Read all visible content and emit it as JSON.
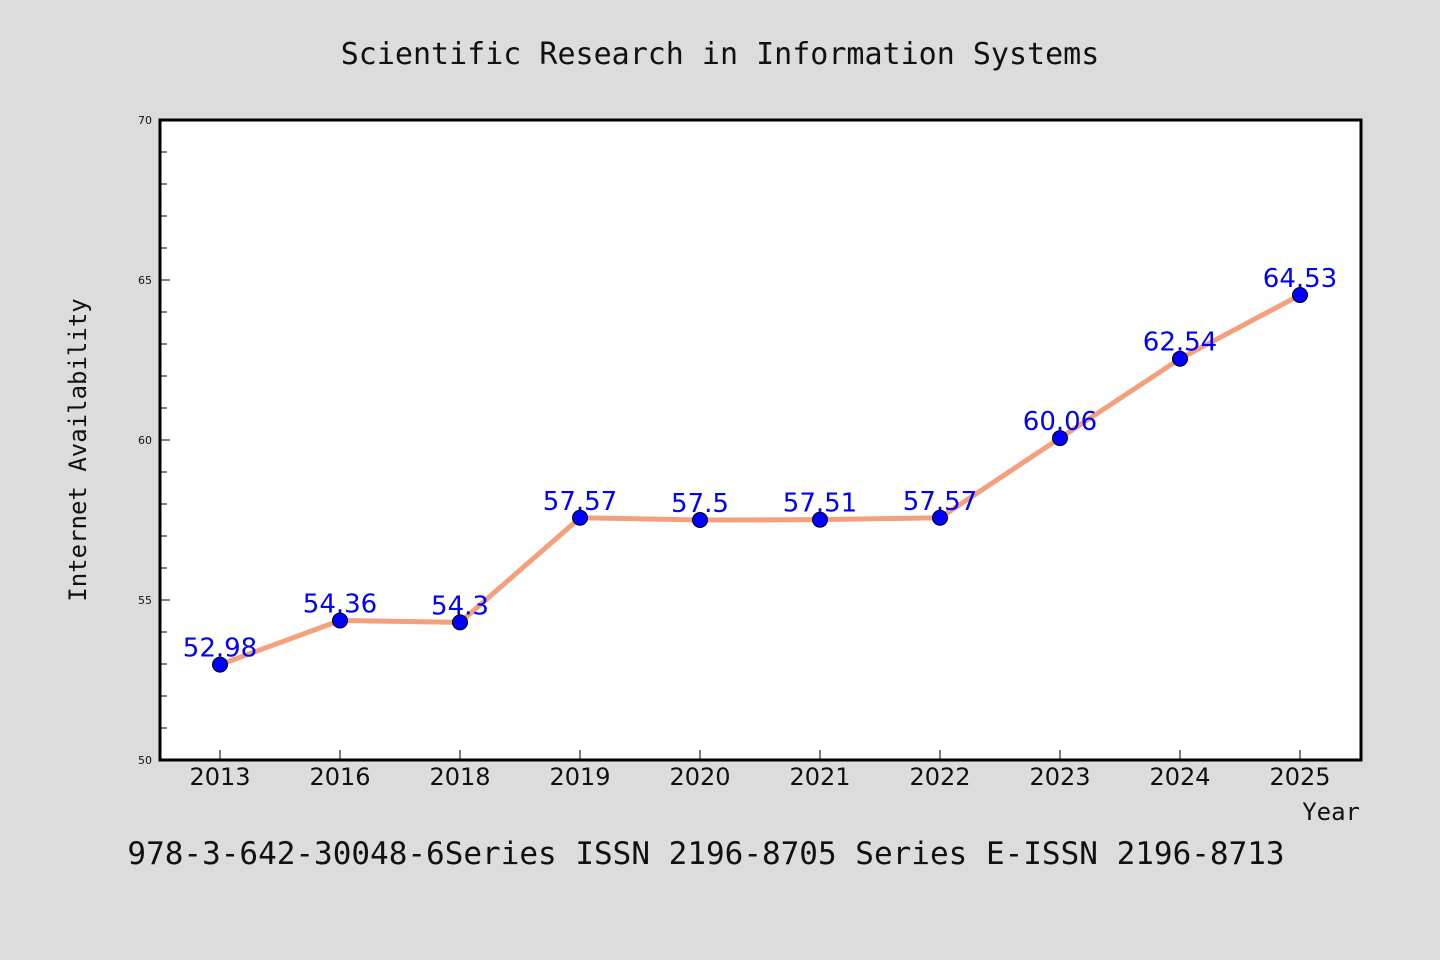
{
  "chart_data": {
    "type": "line",
    "title": "Scientific Research in Information Systems",
    "xlabel": "Year",
    "ylabel": "Internet Availability",
    "categories": [
      "2013",
      "2016",
      "2018",
      "2019",
      "2020",
      "2021",
      "2022",
      "2023",
      "2024",
      "2025"
    ],
    "series": [
      {
        "values": [
          52.98,
          54.36,
          54.3,
          57.57,
          57.5,
          57.51,
          57.57,
          60.06,
          62.54,
          64.53
        ],
        "labels": [
          "52.98",
          "54.36",
          "54.3",
          "57.57",
          "57.5",
          "57.51",
          "57.57",
          "60.06",
          "62.54",
          "64.53"
        ],
        "line_color": "#f4a07c",
        "marker_color": "#0000ff"
      }
    ],
    "ylim": [
      50,
      70
    ],
    "yticks": [
      "50",
      "55",
      "60",
      "65",
      "70"
    ],
    "grid": false,
    "legend": "none",
    "footer": "978-3-642-30048-6Series ISSN 2196-8705 Series E-ISSN 2196-8713",
    "background_color": "#dcdcdc",
    "plot_background_color": "#ffffff",
    "label_color": "#0000ff"
  }
}
